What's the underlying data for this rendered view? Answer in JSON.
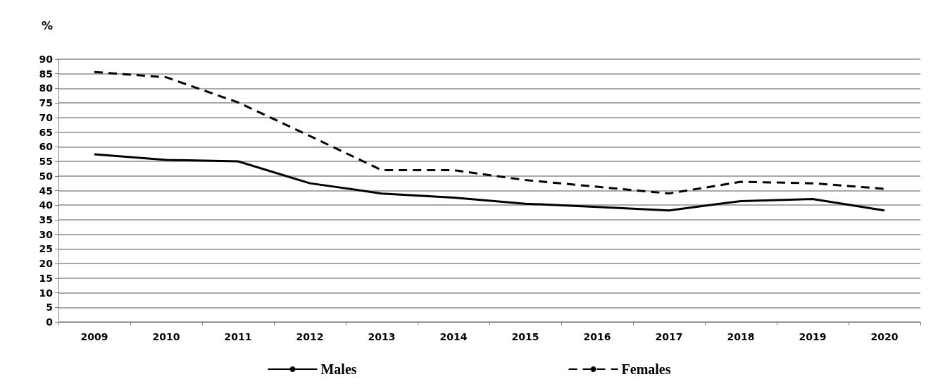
{
  "chart_data": {
    "type": "line",
    "ylabel": "%",
    "categories": [
      "2009",
      "2010",
      "2011",
      "2012",
      "2013",
      "2014",
      "2015",
      "2016",
      "2017",
      "2018",
      "2019",
      "2020"
    ],
    "series": [
      {
        "name": "Males",
        "color": "#000000",
        "line_style": "solid",
        "values": [
          57.4,
          55.5,
          55,
          47.5,
          44,
          42.6,
          40.5,
          39.4,
          38.2,
          41.4,
          42.1,
          38.2
        ]
      },
      {
        "name": "Females",
        "color": "#000000",
        "line_style": "dashed",
        "values": [
          85.6,
          83.8,
          75.2,
          63.7,
          52,
          52,
          48.6,
          46.3,
          44,
          48,
          47.5,
          45.6
        ]
      }
    ],
    "ylim": [
      0,
      90
    ],
    "yticks": [
      0,
      5,
      10,
      15,
      20,
      25,
      30,
      35,
      40,
      45,
      50,
      55,
      60,
      65,
      70,
      75,
      80,
      85,
      90
    ],
    "grid": "y",
    "legend": "bottom",
    "marker": "none"
  }
}
